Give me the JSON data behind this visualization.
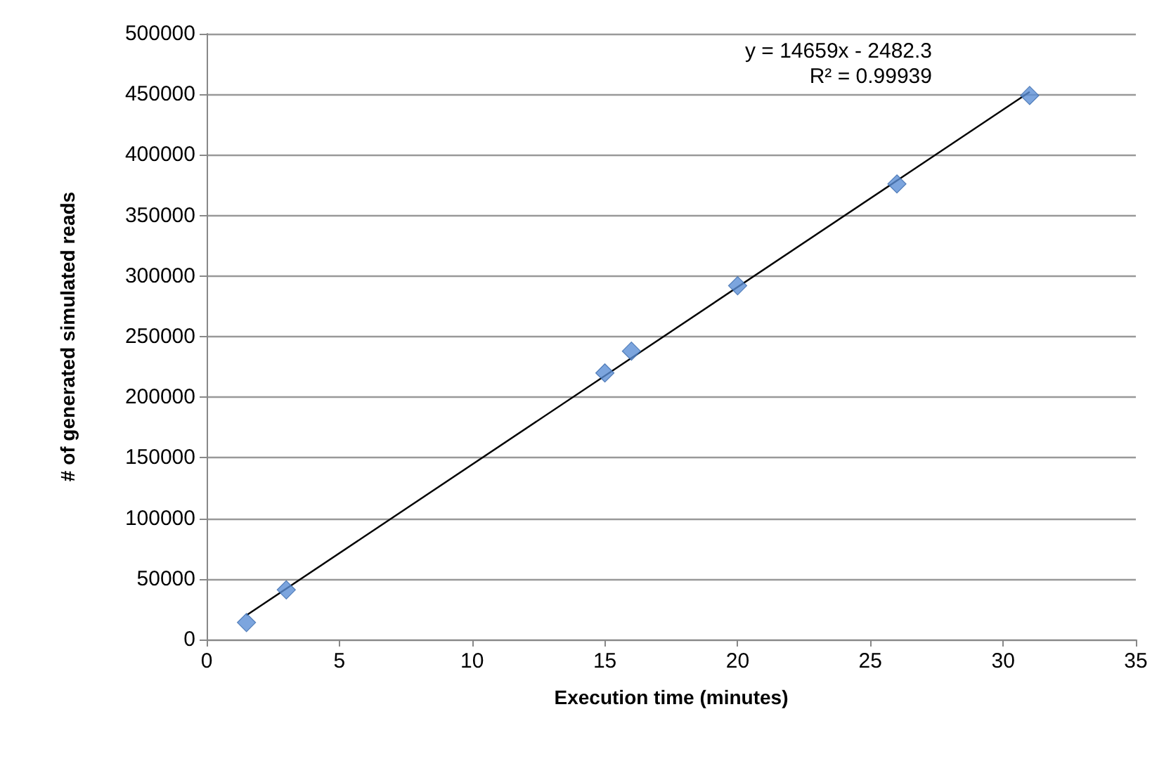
{
  "chart_data": {
    "type": "scatter",
    "xlabel": "Execution time (minutes)",
    "ylabel": "# of generated simulated reads",
    "xlim": [
      0,
      35
    ],
    "xticks": [
      0,
      5,
      10,
      15,
      20,
      25,
      30,
      35
    ],
    "ylim": [
      0,
      500000
    ],
    "yticks": [
      0,
      50000,
      100000,
      150000,
      200000,
      250000,
      300000,
      350000,
      400000,
      450000,
      500000
    ],
    "grid": "y",
    "marker": "diamond",
    "series": [
      {
        "color": "#5b8fd6",
        "x": [
          1.5,
          3,
          15,
          16,
          20,
          26,
          31
        ],
        "values": [
          14000,
          41000,
          220000,
          238000,
          292000,
          376000,
          449000
        ]
      },
      {
        "type": "line",
        "color": "#000000",
        "marker": "none",
        "line_style": "solid",
        "x": [
          1.5,
          31
        ],
        "values": [
          20000,
          452000
        ]
      }
    ],
    "annotations": [
      "y = 14659x - 2482.3",
      "R² = 0.99939"
    ]
  }
}
